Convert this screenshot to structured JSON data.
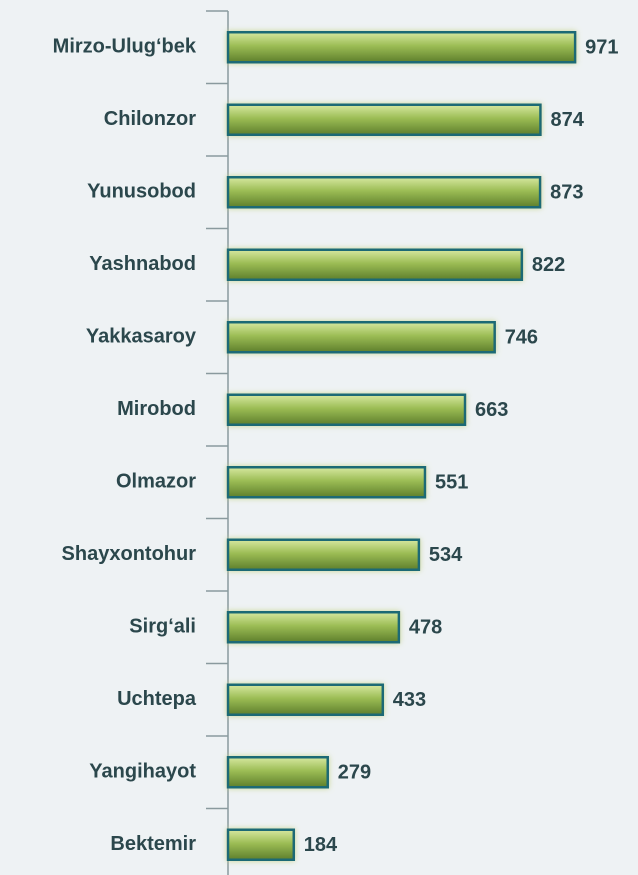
{
  "chart_data": {
    "type": "bar",
    "orientation": "horizontal",
    "categories": [
      "Mirzo-Ulug‘bek",
      "Chilonzor",
      "Yunusobod",
      "Yashnabod",
      "Yakkasaroy",
      "Mirobod",
      "Olmazor",
      "Shayxontohur",
      "Sirg‘ali",
      "Uchtepa",
      "Yangihayot",
      "Bektemir"
    ],
    "values": [
      971,
      874,
      873,
      822,
      746,
      663,
      551,
      534,
      478,
      433,
      279,
      184
    ],
    "color": "#8db04a"
  }
}
